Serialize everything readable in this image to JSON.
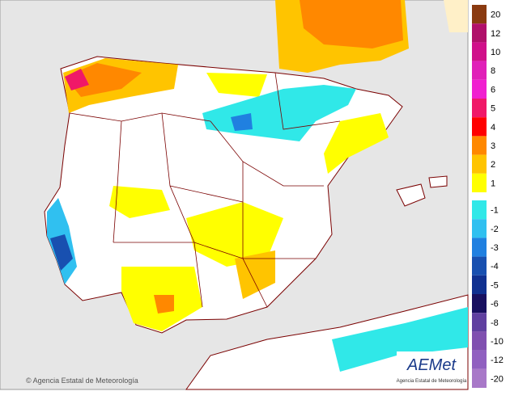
{
  "legend": {
    "items": [
      {
        "label": "20",
        "color": "#8a3a10"
      },
      {
        "label": "12",
        "color": "#b0106a"
      },
      {
        "label": "10",
        "color": "#d0108a"
      },
      {
        "label": "8",
        "color": "#e020b8"
      },
      {
        "label": "6",
        "color": "#f020d0"
      },
      {
        "label": "5",
        "color": "#f01868"
      },
      {
        "label": "4",
        "color": "#ff0000"
      },
      {
        "label": "3",
        "color": "#ff8800"
      },
      {
        "label": "2",
        "color": "#ffc400"
      },
      {
        "label": "1",
        "color": "#ffff00"
      },
      {
        "label": "-1",
        "color": "#30e8e8"
      },
      {
        "label": "-2",
        "color": "#30c0f0"
      },
      {
        "label": "-3",
        "color": "#2080e0"
      },
      {
        "label": "-4",
        "color": "#1850b0"
      },
      {
        "label": "-5",
        "color": "#103090"
      },
      {
        "label": "-6",
        "color": "#181060"
      },
      {
        "label": "-8",
        "color": "#6040a0"
      },
      {
        "label": "-10",
        "color": "#8050b0"
      },
      {
        "label": "-12",
        "color": "#9060c0"
      },
      {
        "label": "-20",
        "color": "#a878c8"
      }
    ]
  },
  "footer": {
    "copyright": "© Agencia Estatal de Meteorología"
  },
  "logo": {
    "name": "AEMet",
    "subtitle": "Agencia Estatal de Meteorología"
  }
}
